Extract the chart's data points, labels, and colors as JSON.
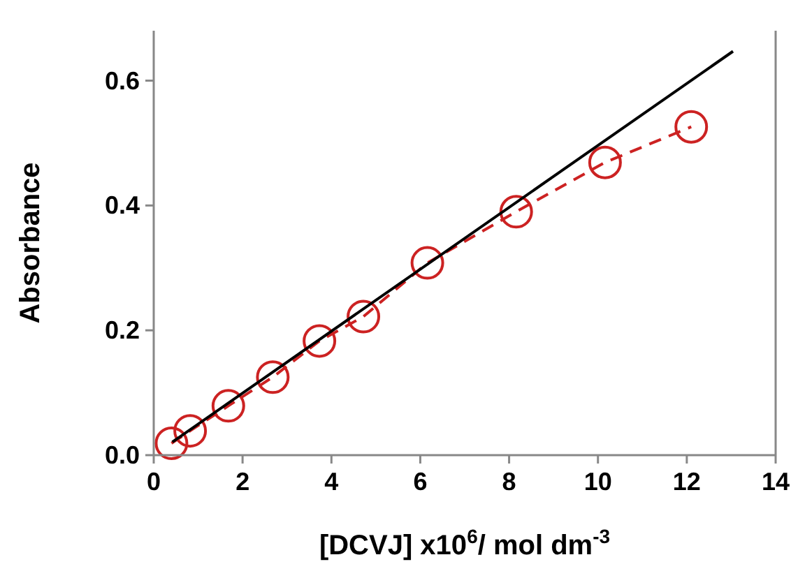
{
  "chart_data": {
    "type": "line",
    "xlabel": "[DCVJ] x10$^{6}$/ mol dm$^{-3}$",
    "ylabel": "Absorbance",
    "xlim": [
      0,
      14
    ],
    "xticks": [
      0,
      2,
      4,
      6,
      8,
      10,
      12,
      14
    ],
    "ylim": [
      0,
      0.68
    ],
    "yticks": [
      {
        "value": 0,
        "label": "0.0"
      },
      0.2,
      0.4,
      0.6
    ],
    "series": [
      {
        "color": "#cc2222",
        "marker": "circle",
        "line_style": "dashed",
        "x": [
          0.4,
          0.82,
          1.68,
          2.68,
          3.73,
          4.72,
          6.16,
          8.16,
          10.16,
          12.1
        ],
        "values": [
          0.019,
          0.039,
          0.079,
          0.125,
          0.183,
          0.222,
          0.308,
          0.39,
          0.469,
          0.526
        ]
      },
      {
        "color": "#000000",
        "marker": "none",
        "line_style": "solid",
        "x": [
          0.42,
          13.04
        ],
        "values": [
          0.021,
          0.647
        ]
      }
    ]
  }
}
